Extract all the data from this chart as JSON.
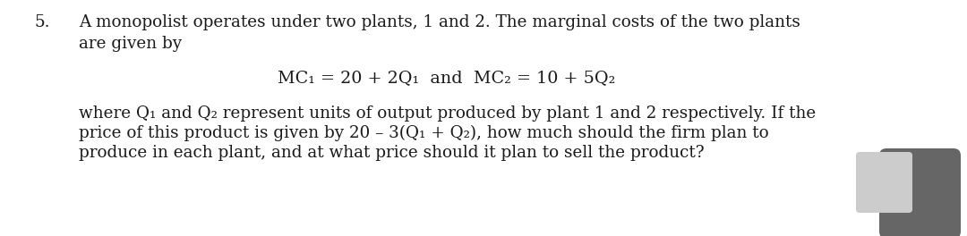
{
  "background_color": "#ffffff",
  "number": "5.",
  "line1": "A monopolist operates under two plants, 1 and 2. The marginal costs of the two plants",
  "line2": "are given by",
  "equation": "MC₁ = 20 + 2Q₁  and  MC₂ = 10 + 5Q₂",
  "para_line1": "where Q₁ and Q₂ represent units of output produced by plant 1 and 2 respectively. If the",
  "para_line2": "price of this product is given by 20 – 3(Q₁ + Q₂), how much should the firm plan to",
  "para_line3": "produce in each plant, and at what price should it plan to sell the product?",
  "text_color": "#1a1a1a",
  "font_size_main": 13.2,
  "font_size_eq": 13.8,
  "font_family": "DejaVu Serif",
  "corner_color": "#666666"
}
